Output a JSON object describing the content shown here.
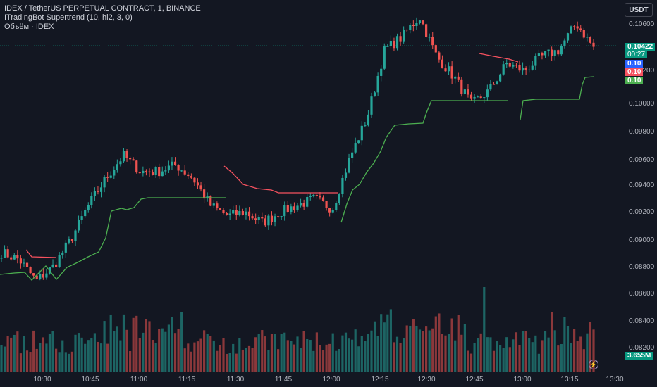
{
  "legend": {
    "symbol_line": "IDEX / TetherUS PERPETUAL CONTRACT, 1, BINANCE",
    "indicator_line": "ITradingBot Supertrend (10, hl2, 3, 0)",
    "volume_line": "Объём · IDEX"
  },
  "currency_button": "USDT",
  "price_scale": {
    "ticks": [
      "0.10600",
      "0.10400",
      "0.10200",
      "0.10000",
      "0.09800",
      "0.09600",
      "0.09400",
      "0.09200",
      "0.09000",
      "0.08800",
      "0.08600",
      "0.08400",
      "0.08200"
    ],
    "current_price": "0.10422",
    "countdown": "00:27",
    "tag_blue": "0.10",
    "tag_red": "0.10",
    "tag_green": "0.10",
    "volume_label": "3.655M"
  },
  "time_axis": {
    "labels": [
      "10:30",
      "10:45",
      "11:00",
      "11:15",
      "11:30",
      "11:45",
      "12:00",
      "12:15",
      "12:30",
      "12:45",
      "13:00",
      "13:15",
      "13:30"
    ]
  },
  "colors": {
    "background": "#131722",
    "up": "#26a69a",
    "down": "#ef5350",
    "supertrend_up": "#4caf50",
    "supertrend_down": "#f7525f",
    "current_price_tag": "#089981",
    "blue_tag": "#2962ff"
  },
  "icons": {
    "flash": "lightning-icon"
  },
  "chart_data": {
    "type": "candlestick",
    "ylim": [
      0.0866,
      0.1065
    ],
    "x": [
      "10:25",
      "10:55",
      "11:25",
      "11:55",
      "12:25",
      "12:55",
      "13:20"
    ],
    "close_path": [
      0.089,
      0.0885,
      0.0869,
      0.088,
      0.09,
      0.0925,
      0.0945,
      0.0962,
      0.095,
      0.095,
      0.0955,
      0.0945,
      0.0925,
      0.0917,
      0.092,
      0.0912,
      0.092,
      0.0925,
      0.093,
      0.0922,
      0.096,
      0.099,
      0.104,
      0.105,
      0.1065,
      0.1035,
      0.102,
      0.1,
      0.101,
      0.103,
      0.1025,
      0.1035,
      0.104,
      0.106,
      0.1042
    ],
    "supertrend_down_segments": [
      [
        [
          0.0886,
          0.0886
        ]
      ],
      [
        [
          0.0955,
          0.0932
        ]
      ],
      [
        [
          0.1042,
          0.1038
        ]
      ]
    ]
  }
}
